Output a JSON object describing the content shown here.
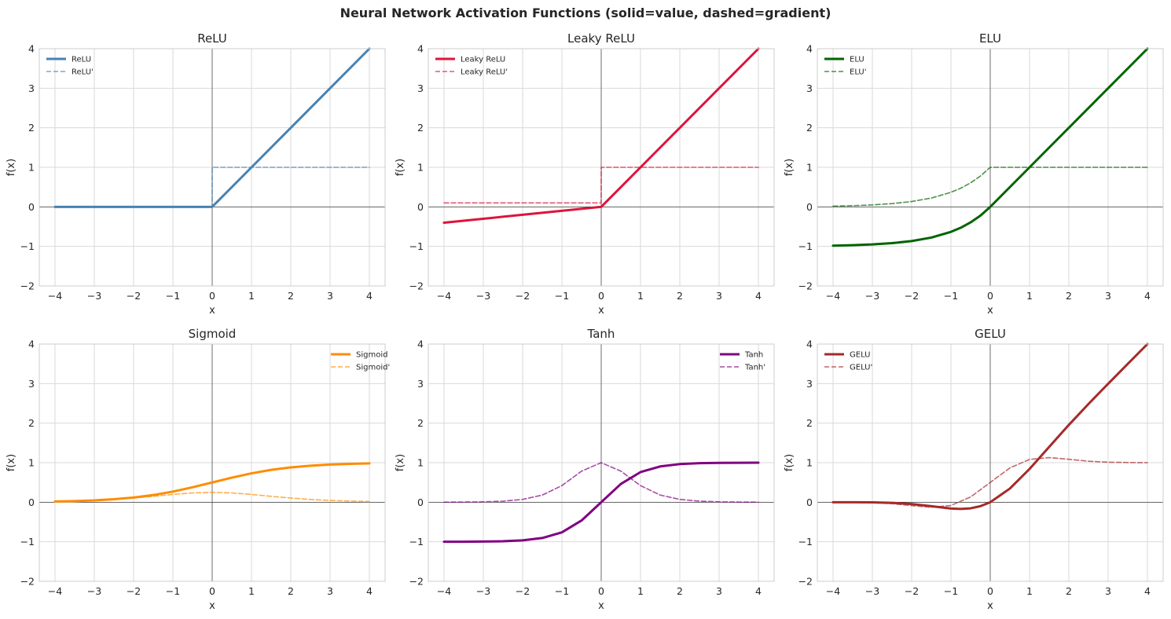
{
  "figure_title": "Neural Network Activation Functions (solid=value, dashed=gradient)",
  "chart_data": [
    {
      "type": "line",
      "id": "relu",
      "title": "ReLU",
      "xlabel": "x",
      "ylabel": "f(x)",
      "xlim": [
        -4.4,
        4.4
      ],
      "ylim": [
        -2,
        4
      ],
      "xticks": [
        -4,
        -3,
        -2,
        -1,
        0,
        1,
        2,
        3,
        4
      ],
      "xtick_labels": [
        "−4",
        "−3",
        "−2",
        "−1",
        "0",
        "1",
        "2",
        "3",
        "4"
      ],
      "yticks": [
        -2,
        -1,
        0,
        1,
        2,
        3,
        4
      ],
      "ytick_labels": [
        "−2",
        "−1",
        "0",
        "1",
        "2",
        "3",
        "4"
      ],
      "grid": true,
      "legend": "top-left",
      "color": "#4682b4",
      "series": [
        {
          "name": "ReLU",
          "style": "solid",
          "x": [
            -4,
            -2,
            0,
            1,
            2,
            3,
            4
          ],
          "y": [
            0,
            0,
            0,
            1,
            2,
            3,
            4
          ]
        },
        {
          "name": "ReLU'",
          "style": "dashed",
          "x": [
            -4,
            -2,
            -0.001,
            0.001,
            2,
            4
          ],
          "y": [
            0,
            0,
            0,
            1,
            1,
            1
          ]
        }
      ]
    },
    {
      "type": "line",
      "id": "leaky-relu",
      "title": "Leaky ReLU",
      "xlabel": "x",
      "ylabel": "f(x)",
      "xlim": [
        -4.4,
        4.4
      ],
      "ylim": [
        -2,
        4
      ],
      "xticks": [
        -4,
        -3,
        -2,
        -1,
        0,
        1,
        2,
        3,
        4
      ],
      "xtick_labels": [
        "−4",
        "−3",
        "−2",
        "−1",
        "0",
        "1",
        "2",
        "3",
        "4"
      ],
      "yticks": [
        -2,
        -1,
        0,
        1,
        2,
        3,
        4
      ],
      "ytick_labels": [
        "−2",
        "−1",
        "0",
        "1",
        "2",
        "3",
        "4"
      ],
      "grid": true,
      "legend": "top-left",
      "color": "#dc143c",
      "series": [
        {
          "name": "Leaky ReLU",
          "style": "solid",
          "x": [
            -4,
            -2,
            0,
            1,
            2,
            3,
            4
          ],
          "y": [
            -0.4,
            -0.2,
            0,
            1,
            2,
            3,
            4
          ]
        },
        {
          "name": "Leaky ReLU'",
          "style": "dashed",
          "x": [
            -4,
            -2,
            -0.001,
            0.001,
            2,
            4
          ],
          "y": [
            0.1,
            0.1,
            0.1,
            1,
            1,
            1
          ]
        }
      ]
    },
    {
      "type": "line",
      "id": "elu",
      "title": "ELU",
      "xlabel": "x",
      "ylabel": "f(x)",
      "xlim": [
        -4.4,
        4.4
      ],
      "ylim": [
        -2,
        4
      ],
      "xticks": [
        -4,
        -3,
        -2,
        -1,
        0,
        1,
        2,
        3,
        4
      ],
      "xtick_labels": [
        "−4",
        "−3",
        "−2",
        "−1",
        "0",
        "1",
        "2",
        "3",
        "4"
      ],
      "yticks": [
        -2,
        -1,
        0,
        1,
        2,
        3,
        4
      ],
      "ytick_labels": [
        "−2",
        "−1",
        "0",
        "1",
        "2",
        "3",
        "4"
      ],
      "grid": true,
      "legend": "top-left",
      "color": "#006400",
      "series": [
        {
          "name": "ELU",
          "style": "solid",
          "x": [
            -4,
            -3.5,
            -3,
            -2.5,
            -2,
            -1.5,
            -1,
            -0.75,
            -0.5,
            -0.25,
            0,
            1,
            2,
            3,
            4
          ],
          "y": [
            -0.982,
            -0.97,
            -0.95,
            -0.918,
            -0.865,
            -0.777,
            -0.632,
            -0.528,
            -0.393,
            -0.221,
            0,
            1,
            2,
            3,
            4
          ]
        },
        {
          "name": "ELU'",
          "style": "dashed",
          "x": [
            -4,
            -3.5,
            -3,
            -2.5,
            -2,
            -1.5,
            -1,
            -0.75,
            -0.5,
            -0.25,
            0,
            1,
            2,
            3,
            4
          ],
          "y": [
            0.018,
            0.03,
            0.05,
            0.082,
            0.135,
            0.223,
            0.368,
            0.472,
            0.607,
            0.779,
            1,
            1,
            1,
            1,
            1
          ]
        }
      ]
    },
    {
      "type": "line",
      "id": "sigmoid",
      "title": "Sigmoid",
      "xlabel": "x",
      "ylabel": "f(x)",
      "xlim": [
        -4.4,
        4.4
      ],
      "ylim": [
        -2,
        4
      ],
      "xticks": [
        -4,
        -3,
        -2,
        -1,
        0,
        1,
        2,
        3,
        4
      ],
      "xtick_labels": [
        "−4",
        "−3",
        "−2",
        "−1",
        "0",
        "1",
        "2",
        "3",
        "4"
      ],
      "yticks": [
        -2,
        -1,
        0,
        1,
        2,
        3,
        4
      ],
      "ytick_labels": [
        "−2",
        "−1",
        "0",
        "1",
        "2",
        "3",
        "4"
      ],
      "grid": true,
      "legend": "top-right",
      "color": "#ff8c00",
      "series": [
        {
          "name": "Sigmoid",
          "style": "solid",
          "x": [
            -4,
            -3.5,
            -3,
            -2.5,
            -2,
            -1.5,
            -1,
            -0.5,
            0,
            0.5,
            1,
            1.5,
            2,
            2.5,
            3,
            3.5,
            4
          ],
          "y": [
            0.018,
            0.029,
            0.047,
            0.076,
            0.119,
            0.182,
            0.269,
            0.378,
            0.5,
            0.622,
            0.731,
            0.818,
            0.881,
            0.924,
            0.953,
            0.971,
            0.982
          ]
        },
        {
          "name": "Sigmoid'",
          "style": "dashed",
          "x": [
            -4,
            -3.5,
            -3,
            -2.5,
            -2,
            -1.5,
            -1,
            -0.5,
            0,
            0.5,
            1,
            1.5,
            2,
            2.5,
            3,
            3.5,
            4
          ],
          "y": [
            0.018,
            0.028,
            0.045,
            0.07,
            0.105,
            0.149,
            0.197,
            0.235,
            0.25,
            0.235,
            0.197,
            0.149,
            0.105,
            0.07,
            0.045,
            0.028,
            0.018
          ]
        }
      ]
    },
    {
      "type": "line",
      "id": "tanh",
      "title": "Tanh",
      "xlabel": "x",
      "ylabel": "f(x)",
      "xlim": [
        -4.4,
        4.4
      ],
      "ylim": [
        -2,
        4
      ],
      "xticks": [
        -4,
        -3,
        -2,
        -1,
        0,
        1,
        2,
        3,
        4
      ],
      "xtick_labels": [
        "−4",
        "−3",
        "−2",
        "−1",
        "0",
        "1",
        "2",
        "3",
        "4"
      ],
      "yticks": [
        -2,
        -1,
        0,
        1,
        2,
        3,
        4
      ],
      "ytick_labels": [
        "−2",
        "−1",
        "0",
        "1",
        "2",
        "3",
        "4"
      ],
      "grid": true,
      "legend": "top-right",
      "color": "#800080",
      "series": [
        {
          "name": "Tanh",
          "style": "solid",
          "x": [
            -4,
            -3.5,
            -3,
            -2.5,
            -2,
            -1.5,
            -1,
            -0.5,
            0,
            0.5,
            1,
            1.5,
            2,
            2.5,
            3,
            3.5,
            4
          ],
          "y": [
            -0.999,
            -0.998,
            -0.995,
            -0.987,
            -0.964,
            -0.905,
            -0.762,
            -0.462,
            0,
            0.462,
            0.762,
            0.905,
            0.964,
            0.987,
            0.995,
            0.998,
            0.999
          ]
        },
        {
          "name": "Tanh'",
          "style": "dashed",
          "x": [
            -4,
            -3.5,
            -3,
            -2.5,
            -2,
            -1.5,
            -1,
            -0.5,
            0,
            0.5,
            1,
            1.5,
            2,
            2.5,
            3,
            3.5,
            4
          ],
          "y": [
            0.001,
            0.004,
            0.01,
            0.026,
            0.071,
            0.181,
            0.42,
            0.786,
            1,
            0.786,
            0.42,
            0.181,
            0.071,
            0.026,
            0.01,
            0.004,
            0.001
          ]
        }
      ]
    },
    {
      "type": "line",
      "id": "gelu",
      "title": "GELU",
      "xlabel": "x",
      "ylabel": "f(x)",
      "xlim": [
        -4.4,
        4.4
      ],
      "ylim": [
        -2,
        4
      ],
      "xticks": [
        -4,
        -3,
        -2,
        -1,
        0,
        1,
        2,
        3,
        4
      ],
      "xtick_labels": [
        "−4",
        "−3",
        "−2",
        "−1",
        "0",
        "1",
        "2",
        "3",
        "4"
      ],
      "yticks": [
        -2,
        -1,
        0,
        1,
        2,
        3,
        4
      ],
      "ytick_labels": [
        "−2",
        "−1",
        "0",
        "1",
        "2",
        "3",
        "4"
      ],
      "grid": true,
      "legend": "top-left",
      "color": "#a52a2a",
      "series": [
        {
          "name": "GELU",
          "style": "solid",
          "x": [
            -4,
            -3.5,
            -3,
            -2.5,
            -2,
            -1.5,
            -1,
            -0.75,
            -0.5,
            -0.25,
            0,
            0.5,
            1,
            1.5,
            2,
            2.5,
            3,
            3.5,
            4
          ],
          "y": [
            0,
            -0.001,
            -0.004,
            -0.015,
            -0.045,
            -0.1,
            -0.159,
            -0.17,
            -0.154,
            -0.1,
            0,
            0.346,
            0.841,
            1.4,
            1.955,
            2.485,
            2.996,
            3.499,
            4.0
          ]
        },
        {
          "name": "GELU'",
          "style": "dashed",
          "x": [
            -4,
            -3.5,
            -3,
            -2.5,
            -2,
            -1.5,
            -1,
            -0.5,
            0,
            0.5,
            1,
            1.5,
            2,
            2.5,
            3,
            3.5,
            4
          ],
          "y": [
            0,
            -0.004,
            -0.012,
            -0.037,
            -0.086,
            -0.128,
            -0.083,
            0.133,
            0.5,
            0.867,
            1.083,
            1.128,
            1.086,
            1.037,
            1.012,
            1.004,
            1.0
          ]
        }
      ]
    }
  ]
}
